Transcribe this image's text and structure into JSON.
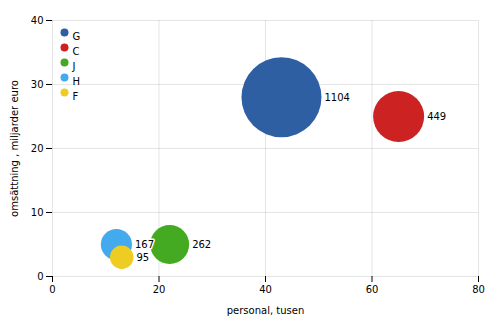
{
  "chart_data": {
    "type": "scatter",
    "xlabel": "personal, tusen",
    "ylabel": "omsättning , miljarder euro",
    "series": [
      {
        "name": "G",
        "color": "#2e5fa3",
        "x": [
          43
        ],
        "values": [
          28
        ],
        "sizes": [
          1104
        ]
      },
      {
        "name": "C",
        "color": "#cc2222",
        "x": [
          65
        ],
        "values": [
          25
        ],
        "sizes": [
          449
        ]
      },
      {
        "name": "J",
        "color": "#44aa22",
        "x": [
          22
        ],
        "values": [
          5
        ],
        "sizes": [
          262
        ]
      },
      {
        "name": "H",
        "color": "#44aaee",
        "x": [
          12
        ],
        "values": [
          5
        ],
        "sizes": [
          167
        ]
      },
      {
        "name": "F",
        "color": "#eecc22",
        "x": [
          13
        ],
        "values": [
          3
        ],
        "sizes": [
          95
        ]
      }
    ],
    "xlim": [
      0,
      80
    ],
    "ylim": [
      0,
      40
    ],
    "xticks": [
      0,
      20,
      40,
      60,
      80
    ],
    "yticks": [
      0,
      10,
      20,
      30,
      40
    ],
    "grid": true,
    "legend": "upper left",
    "data_labels": true
  }
}
